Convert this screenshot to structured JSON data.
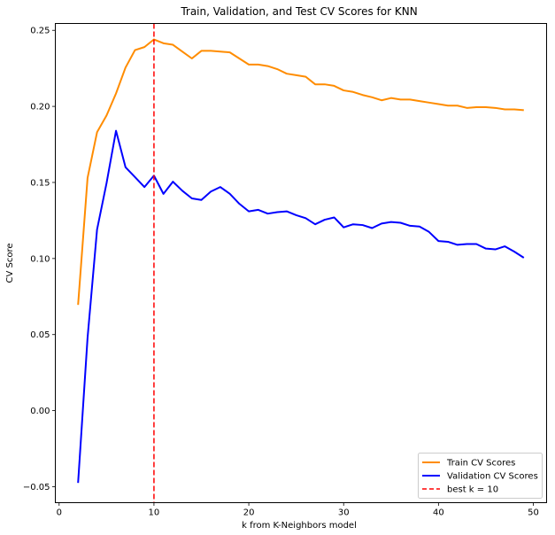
{
  "chart_data": {
    "type": "line",
    "title": "Train, Validation, and Test CV Scores for KNN",
    "xlabel": "k from K-Neighbors model",
    "ylabel": "CV Score",
    "xlim": [
      -0.4,
      51.4
    ],
    "ylim": [
      -0.0605,
      0.2545
    ],
    "xticks": [
      0,
      10,
      20,
      30,
      40,
      50
    ],
    "xtick_labels": [
      "0",
      "10",
      "20",
      "30",
      "40",
      "50"
    ],
    "yticks": [
      -0.05,
      0.0,
      0.05,
      0.1,
      0.15,
      0.2,
      0.25
    ],
    "ytick_labels": [
      "−0.05",
      "0.00",
      "0.05",
      "0.10",
      "0.15",
      "0.20",
      "0.25"
    ],
    "grid": false,
    "legend_position": "lower-right",
    "x": [
      2,
      3,
      4,
      5,
      6,
      7,
      8,
      9,
      10,
      11,
      12,
      13,
      14,
      15,
      16,
      17,
      18,
      19,
      20,
      21,
      22,
      23,
      24,
      25,
      26,
      27,
      28,
      29,
      30,
      31,
      32,
      33,
      34,
      35,
      36,
      37,
      38,
      39,
      40,
      41,
      42,
      43,
      44,
      45,
      46,
      47,
      48,
      49
    ],
    "series": [
      {
        "name": "Train CV Scores",
        "color": "#ff8c00",
        "style": "solid",
        "values": [
          0.0695,
          0.153,
          0.183,
          0.194,
          0.2085,
          0.2255,
          0.237,
          0.239,
          0.244,
          0.2415,
          0.2405,
          0.236,
          0.2315,
          0.2365,
          0.2365,
          0.236,
          0.2355,
          0.2315,
          0.2275,
          0.2275,
          0.2265,
          0.2245,
          0.2215,
          0.2205,
          0.2195,
          0.2145,
          0.2145,
          0.2135,
          0.2105,
          0.2095,
          0.2075,
          0.206,
          0.204,
          0.2055,
          0.2045,
          0.2045,
          0.2035,
          0.2025,
          0.2015,
          0.2005,
          0.2005,
          0.199,
          0.1995,
          0.1995,
          0.199,
          0.198,
          0.198,
          0.1975
        ]
      },
      {
        "name": "Validation CV Scores",
        "color": "#0000ff",
        "style": "solid",
        "values": [
          -0.0475,
          0.048,
          0.119,
          0.1495,
          0.184,
          0.16,
          0.1535,
          0.147,
          0.1545,
          0.1425,
          0.1505,
          0.1445,
          0.1395,
          0.1385,
          0.144,
          0.147,
          0.1425,
          0.136,
          0.131,
          0.132,
          0.1295,
          0.1305,
          0.131,
          0.1285,
          0.1265,
          0.1225,
          0.1255,
          0.127,
          0.1205,
          0.1225,
          0.122,
          0.12,
          0.123,
          0.124,
          0.1235,
          0.1215,
          0.121,
          0.1175,
          0.1115,
          0.111,
          0.109,
          0.1095,
          0.1095,
          0.1065,
          0.106,
          0.108,
          0.1045,
          0.1005
        ]
      }
    ],
    "vline": {
      "x": 10,
      "label": "best k = 10",
      "color": "#ff0000",
      "style": "dashed"
    }
  }
}
